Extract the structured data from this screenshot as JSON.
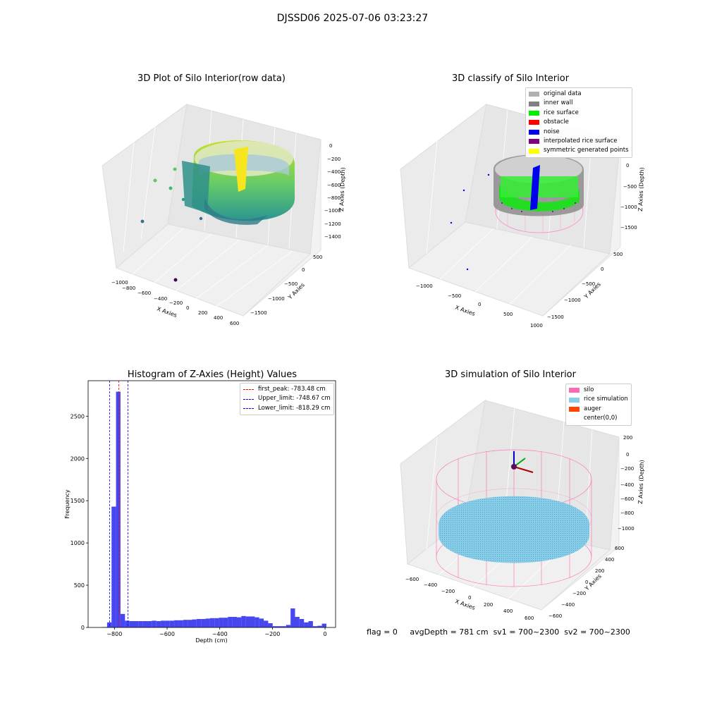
{
  "figure": {
    "title": "DJSSD06 2025-07-06 03:23:27"
  },
  "panels": {
    "raw": {
      "title": "3D Plot of Silo Interior(row data)",
      "x_label": "X Axies",
      "y_label": "Y Axies",
      "z_label": "Z Axies (Depth)",
      "x_ticks": [
        "−1000",
        "−800",
        "−600",
        "−400",
        "−200",
        "0",
        "200",
        "400",
        "600"
      ],
      "y_ticks": [
        "500",
        "0",
        "−500",
        "−1000",
        "−1500"
      ],
      "z_ticks": [
        "0",
        "−200",
        "−400",
        "−600",
        "−800",
        "−1000",
        "−1200",
        "−1400"
      ],
      "colormap": [
        "#440154",
        "#3b528b",
        "#21908d",
        "#5dc963",
        "#fde725"
      ]
    },
    "classify": {
      "title": "3D classify of Silo Interior",
      "x_label": "X Axies",
      "y_label": "Y Axies",
      "z_label": "Z Axies (Depth)",
      "x_ticks": [
        "−1000",
        "−500",
        "0",
        "500",
        "1000"
      ],
      "y_ticks": [
        "500",
        "0",
        "−500",
        "−1000",
        "−1500"
      ],
      "z_ticks": [
        "0",
        "−500",
        "−1000",
        "−1500"
      ],
      "legend": [
        {
          "label": "original data",
          "color": "#b0b0b0"
        },
        {
          "label": "inner wall",
          "color": "#808080"
        },
        {
          "label": "rice surface",
          "color": "#00ee00"
        },
        {
          "label": "obstacle",
          "color": "#ff0000"
        },
        {
          "label": "noise",
          "color": "#0000ee"
        },
        {
          "label": "interpolated rice surface",
          "color": "#800080"
        },
        {
          "label": "symmetric generated points",
          "color": "#ffff00"
        }
      ]
    },
    "simulation": {
      "title": "3D simulation of Silo Interior",
      "x_label": "X Axies",
      "y_label": "Y Axies",
      "z_label": "Z Axies (Depth)",
      "x_ticks": [
        "−600",
        "−400",
        "−200",
        "0",
        "200",
        "400",
        "600"
      ],
      "y_ticks": [
        "600",
        "400",
        "200",
        "0",
        "−200",
        "−400",
        "−600"
      ],
      "z_ticks": [
        "200",
        "0",
        "−200",
        "−400",
        "−600",
        "−800",
        "−1000"
      ],
      "legend": [
        {
          "label": "silo",
          "color": "#ff69b4"
        },
        {
          "label": "rice simulation",
          "color": "#87ceeb"
        },
        {
          "label": "auger",
          "color": "#ff4500"
        },
        {
          "label": "center(0,0)",
          "color": "#ffffff"
        }
      ]
    }
  },
  "status": {
    "flag": "flag = 0",
    "avg_depth": "avgDepth = 781 cm",
    "sv1": "sv1 = 700~2300",
    "sv2": "sv2 = 700~2300"
  },
  "chart_data": [
    {
      "type": "histogram",
      "title": "Histogram of Z-Axies (Height) Values",
      "xlabel": "Depth (cm)",
      "ylabel": "Frequency",
      "xlim": [
        -900,
        40
      ],
      "ylim": [
        0,
        2920
      ],
      "x_ticks": [
        -800,
        -600,
        -400,
        -200,
        0
      ],
      "y_ticks": [
        0,
        500,
        1000,
        1500,
        2000,
        2500
      ],
      "bin_width": 17,
      "bar_color": "#3333ee",
      "bins": [
        {
          "x": -845,
          "y": 5
        },
        {
          "x": -828,
          "y": 60
        },
        {
          "x": -811,
          "y": 1430
        },
        {
          "x": -794,
          "y": 2790
        },
        {
          "x": -777,
          "y": 160
        },
        {
          "x": -760,
          "y": 80
        },
        {
          "x": -743,
          "y": 75
        },
        {
          "x": -726,
          "y": 75
        },
        {
          "x": -709,
          "y": 75
        },
        {
          "x": -692,
          "y": 75
        },
        {
          "x": -675,
          "y": 75
        },
        {
          "x": -658,
          "y": 80
        },
        {
          "x": -641,
          "y": 75
        },
        {
          "x": -624,
          "y": 80
        },
        {
          "x": -607,
          "y": 80
        },
        {
          "x": -590,
          "y": 80
        },
        {
          "x": -573,
          "y": 85
        },
        {
          "x": -556,
          "y": 85
        },
        {
          "x": -539,
          "y": 90
        },
        {
          "x": -522,
          "y": 90
        },
        {
          "x": -505,
          "y": 95
        },
        {
          "x": -488,
          "y": 100
        },
        {
          "x": -471,
          "y": 100
        },
        {
          "x": -454,
          "y": 105
        },
        {
          "x": -437,
          "y": 110
        },
        {
          "x": -420,
          "y": 110
        },
        {
          "x": -403,
          "y": 115
        },
        {
          "x": -386,
          "y": 115
        },
        {
          "x": -369,
          "y": 125
        },
        {
          "x": -352,
          "y": 125
        },
        {
          "x": -335,
          "y": 120
        },
        {
          "x": -318,
          "y": 135
        },
        {
          "x": -301,
          "y": 130
        },
        {
          "x": -284,
          "y": 130
        },
        {
          "x": -267,
          "y": 120
        },
        {
          "x": -250,
          "y": 105
        },
        {
          "x": -233,
          "y": 80
        },
        {
          "x": -216,
          "y": 50
        },
        {
          "x": -199,
          "y": 15
        },
        {
          "x": -182,
          "y": 15
        },
        {
          "x": -165,
          "y": 15
        },
        {
          "x": -148,
          "y": 30
        },
        {
          "x": -131,
          "y": 225
        },
        {
          "x": -114,
          "y": 125
        },
        {
          "x": -97,
          "y": 100
        },
        {
          "x": -80,
          "y": 60
        },
        {
          "x": -63,
          "y": 75
        },
        {
          "x": -46,
          "y": 15
        },
        {
          "x": -29,
          "y": 20
        },
        {
          "x": -12,
          "y": 45
        }
      ],
      "vlines": [
        {
          "label": "first_peak: -783.48 cm",
          "x": -783.48,
          "color": "#ff0000"
        },
        {
          "label": "Upper_limit: -748.67 cm",
          "x": -748.67,
          "color": "#0000ff"
        },
        {
          "label": "Lower_limit: -818.29 cm",
          "x": -818.29,
          "color": "#0000ff"
        }
      ],
      "legend_position": "top-right"
    }
  ]
}
